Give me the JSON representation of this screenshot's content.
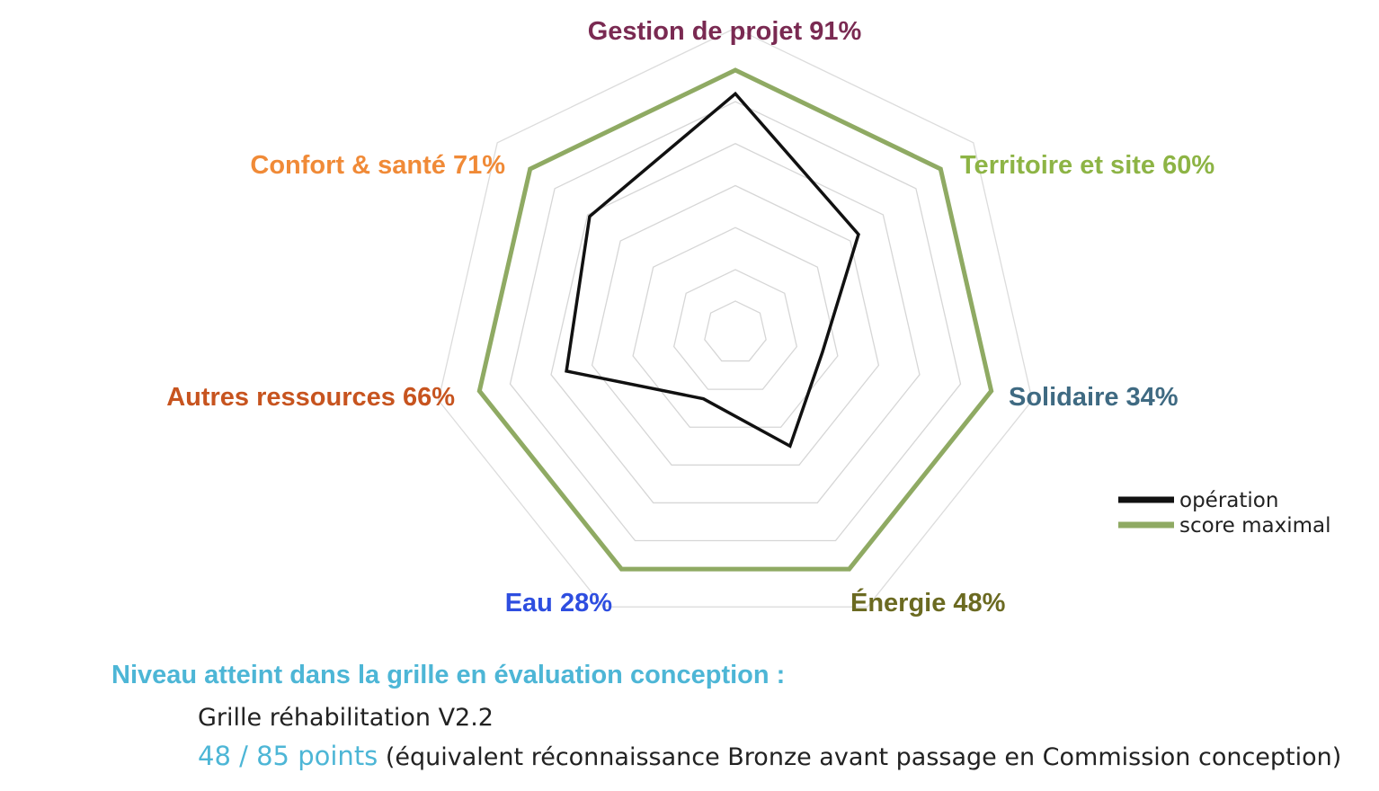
{
  "chart_data": {
    "type": "radar",
    "axes": [
      {
        "label": "Gestion de projet 91%",
        "value": 91,
        "color": "#7a2a52"
      },
      {
        "label": "Territoire et site 60%",
        "value": 60,
        "color": "#8db445"
      },
      {
        "label": "Solidaire 34%",
        "value": 34,
        "color": "#3f6a82"
      },
      {
        "label": "Énergie 48%",
        "value": 48,
        "color": "#6b6a21"
      },
      {
        "label": "Eau 28%",
        "value": 28,
        "color": "#2e4ee0"
      },
      {
        "label": "Autres ressources 66%",
        "value": 66,
        "color": "#c7541f"
      },
      {
        "label": "Confort & santé 71%",
        "value": 71,
        "color": "#f08a37"
      }
    ],
    "series": [
      {
        "name": "opération",
        "values": [
          91,
          60,
          34,
          48,
          28,
          66,
          71
        ],
        "color": "#111111"
      },
      {
        "name": "score maximal",
        "values": [
          100,
          100,
          100,
          100,
          100,
          100,
          100
        ],
        "color": "#8faa63"
      }
    ],
    "rlim": [
      0,
      100
    ],
    "gridlines": true,
    "legend_position": "right"
  },
  "footer": {
    "title": "Niveau atteint dans la grille en évaluation conception :",
    "title_color": "#4db6d6",
    "grid_version": "Grille réhabilitation V2.2",
    "points": "48 / 85 points",
    "points_color": "#4db6d6",
    "note": " (équivalent réconnaissance Bronze avant passage en Commission conception)"
  }
}
